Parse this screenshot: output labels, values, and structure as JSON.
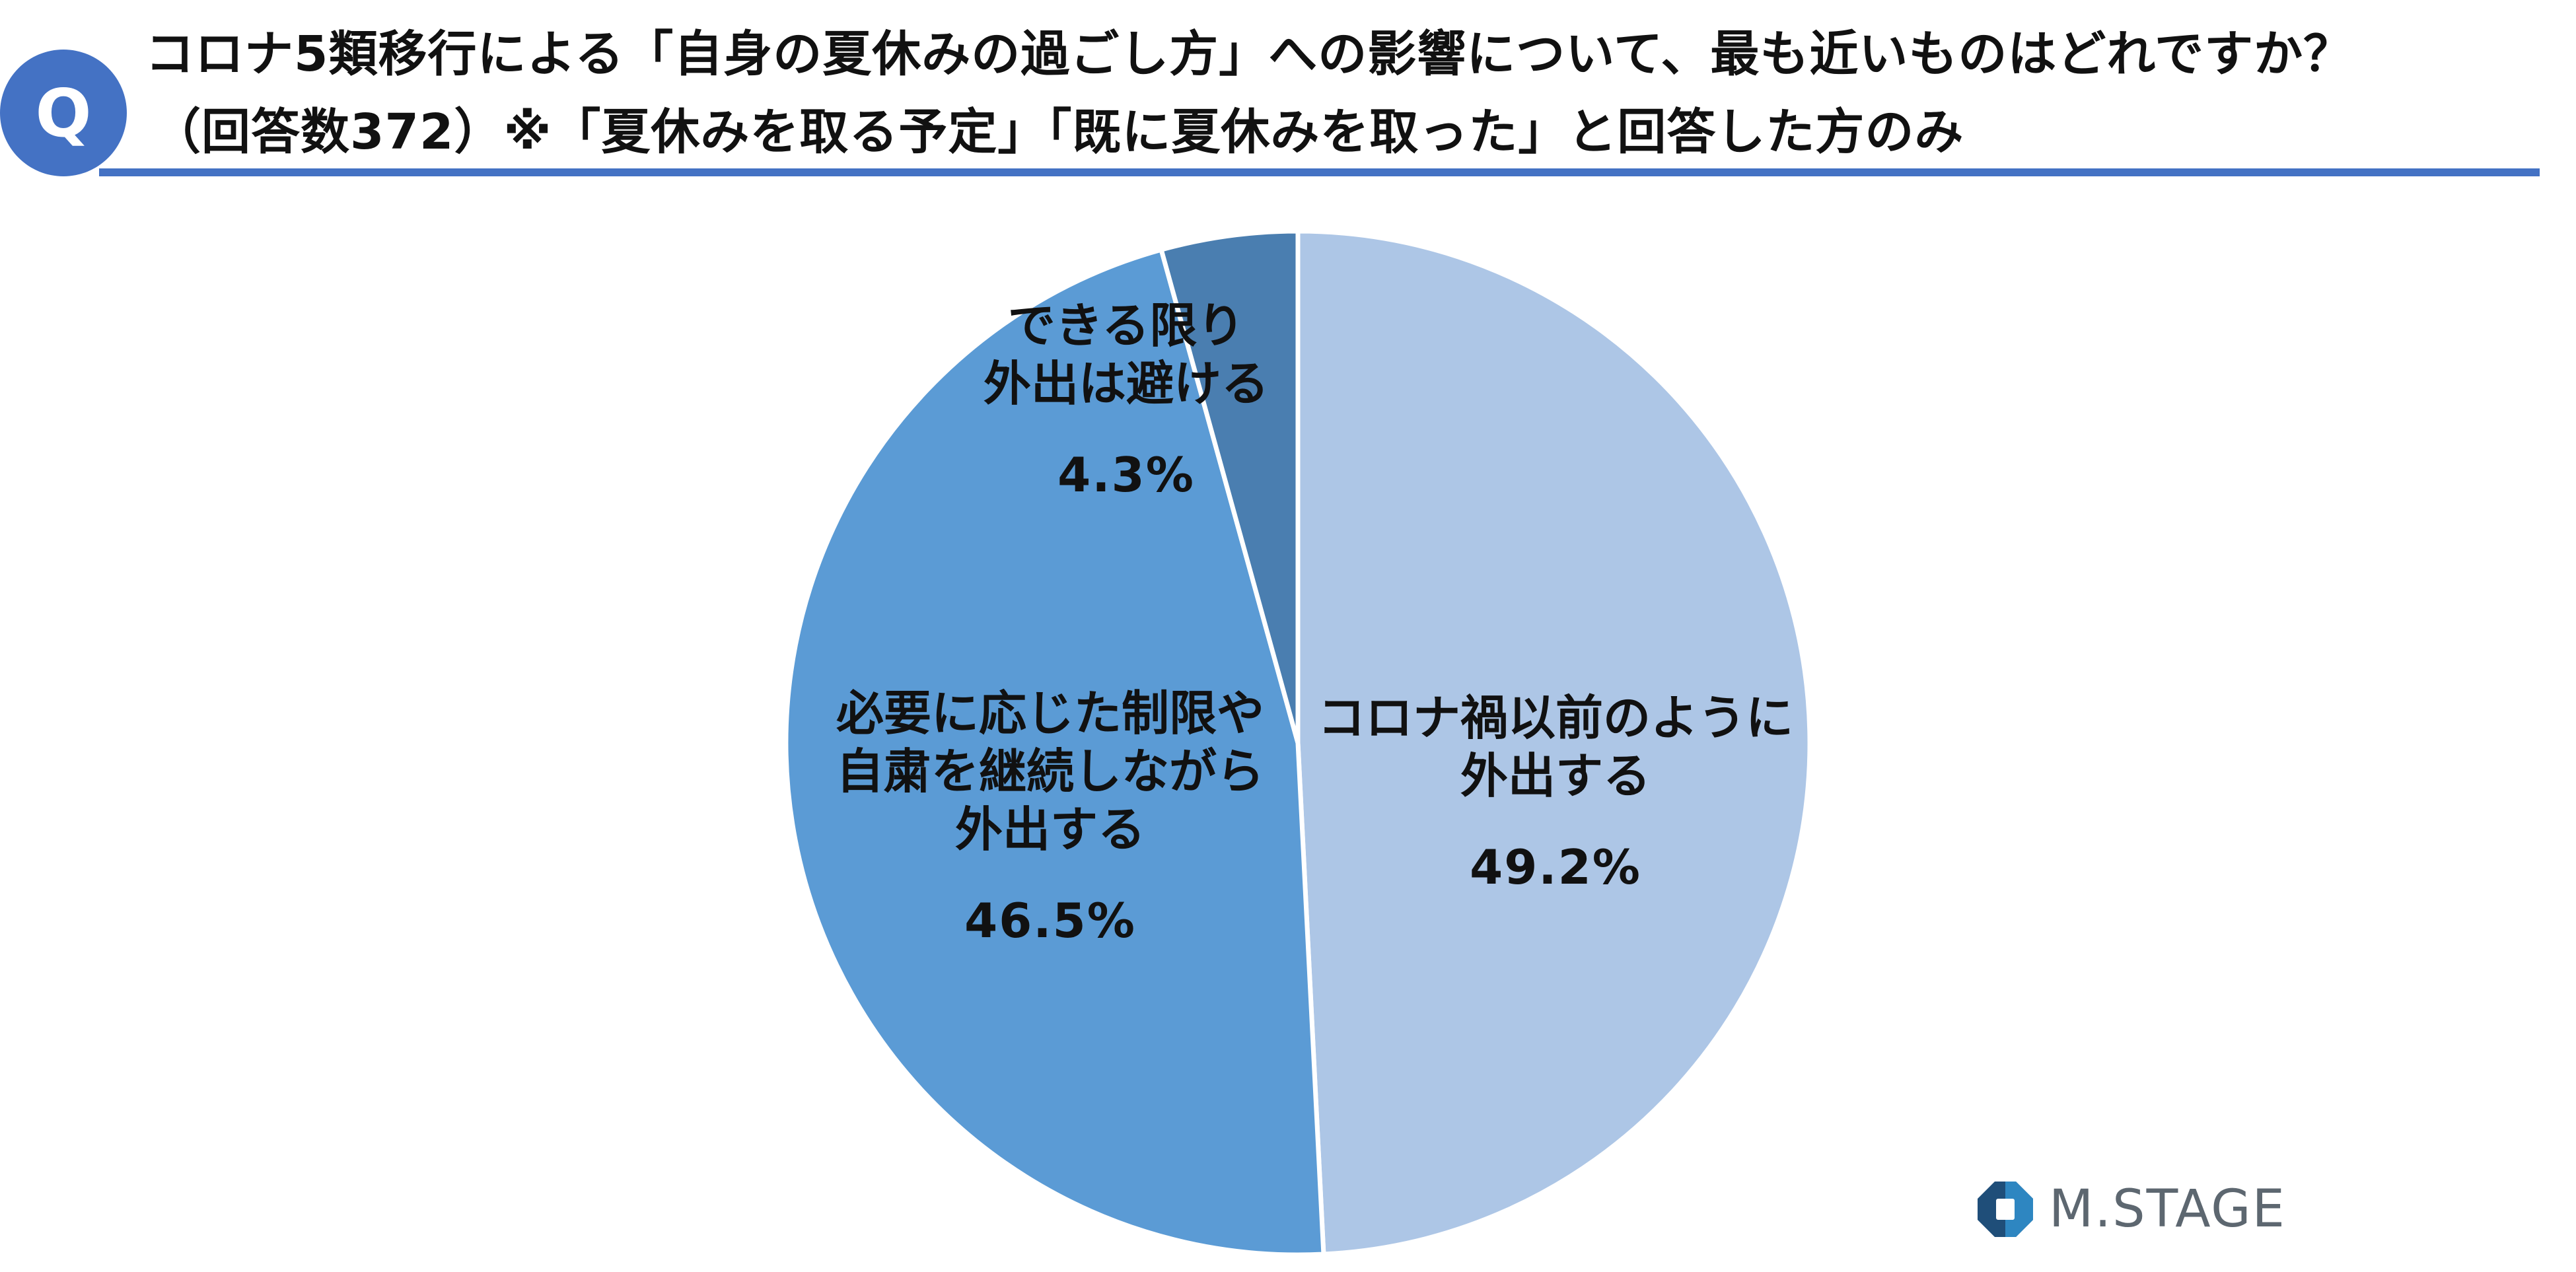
{
  "header": {
    "badge": "Q",
    "title_line1": "コロナ5類移行による「自身の夏休みの過ごし方」への影響について、最も近いものはどれですか？",
    "title_line2": "（回答数372）※「夏休みを取る予定」「既に夏休みを取った」と回答した方のみ"
  },
  "chart_data": {
    "type": "pie",
    "start": "12 o'clock",
    "direction": "clockwise",
    "slices": [
      {
        "label": [
          "コロナ禍以前のように",
          "外出する"
        ],
        "value": 49.2,
        "value_label": "49.2%",
        "color": "#ADC6E6"
      },
      {
        "label": [
          "必要に応じた制限や",
          "自粛を継続しながら",
          "外出する"
        ],
        "value": 46.5,
        "value_label": "46.5%",
        "color": "#5B9BD5"
      },
      {
        "label": [
          "できる限り",
          "外出は避ける"
        ],
        "value": 4.3,
        "value_label": "4.3%",
        "color": "#4A7EB0"
      }
    ]
  },
  "logo": {
    "text": "M.STAGE",
    "colors": [
      "#1f4e79",
      "#2e86c1"
    ]
  }
}
